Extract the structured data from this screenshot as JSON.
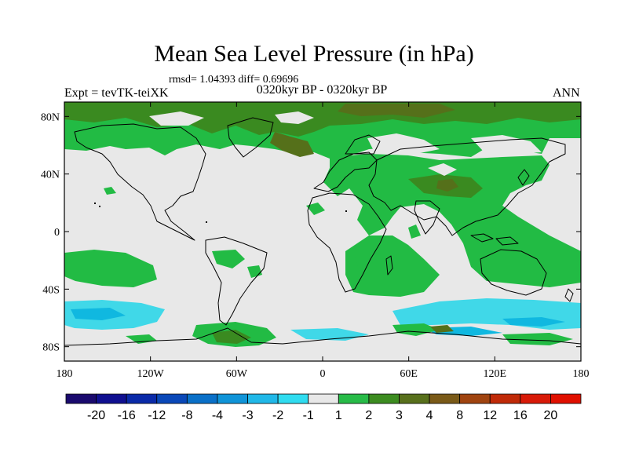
{
  "title": "Mean Sea Level Pressure (in hPa)",
  "stats": "rmsd= 1.04393 diff= 0.69696",
  "experiment": "Expt = tevTK-teiXK",
  "period": "0320kyr BP - 0320kyr BP",
  "season": "ANN",
  "lon_ticks": [
    {
      "lon": -180,
      "label": "180"
    },
    {
      "lon": -120,
      "label": "120W"
    },
    {
      "lon": -60,
      "label": "60W"
    },
    {
      "lon": 0,
      "label": "0"
    },
    {
      "lon": 60,
      "label": "60E"
    },
    {
      "lon": 120,
      "label": "120E"
    },
    {
      "lon": 180,
      "label": "180"
    }
  ],
  "lat_ticks": [
    {
      "lat": 80,
      "label": "80N"
    },
    {
      "lat": 40,
      "label": "40N"
    },
    {
      "lat": 0,
      "label": "0"
    },
    {
      "lat": -40,
      "label": "40S"
    },
    {
      "lat": -80,
      "label": "80S"
    }
  ],
  "colors": {
    "land_outline": "#000000",
    "no_change": "#e8e8e8",
    "low_1_2": "#22bb44",
    "low_2_3": "#3a8a20",
    "low_3_4": "#55701a",
    "low_4_8": "#7a5a18",
    "high_neg1_2": "#40d8e8",
    "high_neg2_3": "#10b8e0"
  },
  "colorbar": {
    "labels": [
      "-20",
      "-16",
      "-12",
      "-8",
      "-4",
      "-3",
      "-2",
      "-1",
      "1",
      "2",
      "3",
      "4",
      "8",
      "12",
      "16",
      "20"
    ],
    "colors": [
      "#1a0a6e",
      "#101090",
      "#0a2aa8",
      "#0a48b8",
      "#0a70c8",
      "#1094d8",
      "#20b8e8",
      "#30dcf0",
      "#e8e8e8",
      "#28bb48",
      "#3c8c20",
      "#58701c",
      "#7a5a18",
      "#a04410",
      "#c02a08",
      "#d81a08",
      "#e01000"
    ]
  }
}
